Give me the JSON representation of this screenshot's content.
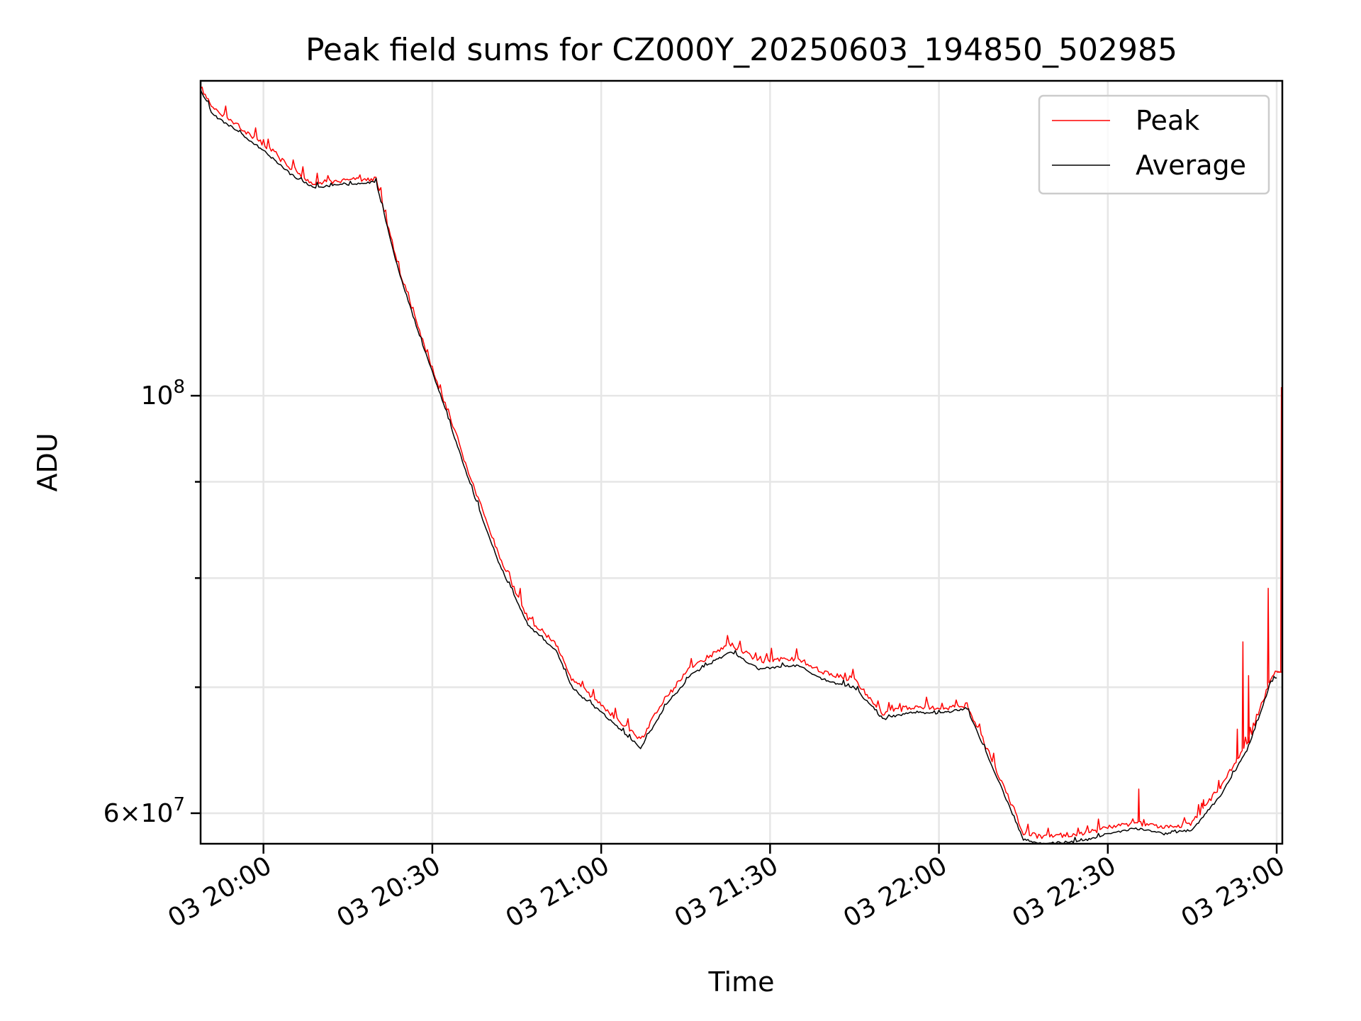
{
  "chart_data": {
    "type": "line",
    "title": "Peak field sums for CZ000Y_20250603_194850_502985",
    "xlabel": "Time",
    "ylabel": "ADU",
    "y_scale": "log",
    "xlim": [
      "2025-06-03T19:48:50",
      "2025-06-03T23:01:00"
    ],
    "ylim": [
      57800000,
      147000000
    ],
    "grid": true,
    "legend_position": "top-right",
    "x_ticks": [
      {
        "value": "2025-06-03T20:00",
        "label": "03 20:00"
      },
      {
        "value": "2025-06-03T20:30",
        "label": "03 20:30"
      },
      {
        "value": "2025-06-03T21:00",
        "label": "03 21:00"
      },
      {
        "value": "2025-06-03T21:30",
        "label": "03 21:30"
      },
      {
        "value": "2025-06-03T22:00",
        "label": "03 22:00"
      },
      {
        "value": "2025-06-03T22:30",
        "label": "03 22:30"
      },
      {
        "value": "2025-06-03T23:00",
        "label": "03 23:00"
      }
    ],
    "y_major_ticks": [
      {
        "value": 60000000,
        "mantissa": "6",
        "exponent": "7"
      },
      {
        "value": 100000000,
        "mantissa": "",
        "exponent": "8"
      }
    ],
    "y_minor_ticks": [
      70000000,
      80000000,
      90000000
    ],
    "series": [
      {
        "name": "Peak",
        "color": "#ff0000",
        "points": [
          [
            "2025-06-03T19:48:50",
            146000000
          ],
          [
            "2025-06-03T19:51",
            142000000
          ],
          [
            "2025-06-03T19:55",
            139500000
          ],
          [
            "2025-06-03T20:00",
            136000000
          ],
          [
            "2025-06-03T20:05",
            132000000
          ],
          [
            "2025-06-03T20:09",
            129500000
          ],
          [
            "2025-06-03T20:12",
            130000000
          ],
          [
            "2025-06-03T20:16",
            130200000
          ],
          [
            "2025-06-03T20:20",
            130300000
          ],
          [
            "2025-06-03T20:24",
            117000000
          ],
          [
            "2025-06-03T20:28",
            107500000
          ],
          [
            "2025-06-03T20:32",
            99500000
          ],
          [
            "2025-06-03T20:37",
            90000000
          ],
          [
            "2025-06-03T20:42",
            82000000
          ],
          [
            "2025-06-03T20:47",
            76200000
          ],
          [
            "2025-06-03T20:52",
            73800000
          ],
          [
            "2025-06-03T20:55",
            70500000
          ],
          [
            "2025-06-03T21:00",
            68500000
          ],
          [
            "2025-06-03T21:07",
            65600000
          ],
          [
            "2025-06-03T21:11",
            68800000
          ],
          [
            "2025-06-03T21:16",
            71800000
          ],
          [
            "2025-06-03T21:23",
            73800000
          ],
          [
            "2025-06-03T21:28",
            72300000
          ],
          [
            "2025-06-03T21:35",
            72500000
          ],
          [
            "2025-06-03T21:40",
            71200000
          ],
          [
            "2025-06-03T21:45",
            70600000
          ],
          [
            "2025-06-03T21:50",
            67800000
          ],
          [
            "2025-06-03T21:55",
            68300000
          ],
          [
            "2025-06-03T22:00",
            68200000
          ],
          [
            "2025-06-03T22:05",
            68500000
          ],
          [
            "2025-06-03T22:10",
            63500000
          ],
          [
            "2025-06-03T22:15",
            58600000
          ],
          [
            "2025-06-03T22:18",
            58300000
          ],
          [
            "2025-06-03T22:25",
            58500000
          ],
          [
            "2025-06-03T22:30",
            58900000
          ],
          [
            "2025-06-03T22:35",
            59300000
          ],
          [
            "2025-06-03T22:40",
            58900000
          ],
          [
            "2025-06-03T22:45",
            59300000
          ],
          [
            "2025-06-03T22:50",
            62000000
          ],
          [
            "2025-06-03T22:55",
            65500000
          ],
          [
            "2025-06-03T22:59",
            70800000
          ],
          [
            "2025-06-03T23:00",
            71300000
          ]
        ]
      },
      {
        "name": "Average",
        "color": "#000000",
        "points": [
          [
            "2025-06-03T19:48:50",
            145500000
          ],
          [
            "2025-06-03T19:51",
            141000000
          ],
          [
            "2025-06-03T19:55",
            138500000
          ],
          [
            "2025-06-03T20:00",
            135000000
          ],
          [
            "2025-06-03T20:05",
            131000000
          ],
          [
            "2025-06-03T20:09",
            129000000
          ],
          [
            "2025-06-03T20:12",
            129300000
          ],
          [
            "2025-06-03T20:16",
            129600000
          ],
          [
            "2025-06-03T20:20",
            129900000
          ],
          [
            "2025-06-03T20:24",
            116500000
          ],
          [
            "2025-06-03T20:28",
            107000000
          ],
          [
            "2025-06-03T20:32",
            99000000
          ],
          [
            "2025-06-03T20:37",
            89200000
          ],
          [
            "2025-06-03T20:42",
            81200000
          ],
          [
            "2025-06-03T20:47",
            75500000
          ],
          [
            "2025-06-03T20:52",
            73200000
          ],
          [
            "2025-06-03T20:55",
            69800000
          ],
          [
            "2025-06-03T21:00",
            67900000
          ],
          [
            "2025-06-03T21:07",
            65000000
          ],
          [
            "2025-06-03T21:11",
            68100000
          ],
          [
            "2025-06-03T21:16",
            71100000
          ],
          [
            "2025-06-03T21:23",
            73100000
          ],
          [
            "2025-06-03T21:28",
            71600000
          ],
          [
            "2025-06-03T21:35",
            71900000
          ],
          [
            "2025-06-03T21:40",
            70500000
          ],
          [
            "2025-06-03T21:45",
            70000000
          ],
          [
            "2025-06-03T21:50",
            67300000
          ],
          [
            "2025-06-03T21:55",
            67900000
          ],
          [
            "2025-06-03T22:00",
            67800000
          ],
          [
            "2025-06-03T22:05",
            68200000
          ],
          [
            "2025-06-03T22:10",
            63000000
          ],
          [
            "2025-06-03T22:15",
            58100000
          ],
          [
            "2025-06-03T22:18",
            57850000
          ],
          [
            "2025-06-03T22:25",
            57950000
          ],
          [
            "2025-06-03T22:30",
            58500000
          ],
          [
            "2025-06-03T22:35",
            58900000
          ],
          [
            "2025-06-03T22:40",
            58500000
          ],
          [
            "2025-06-03T22:45",
            58800000
          ],
          [
            "2025-06-03T22:50",
            61300000
          ],
          [
            "2025-06-03T22:55",
            65000000
          ],
          [
            "2025-06-03T22:59",
            70500000
          ],
          [
            "2025-06-03T23:00",
            70800000
          ]
        ]
      }
    ],
    "peak_spikes": [
      [
        "2025-06-03T22:35:30",
        61800000
      ],
      [
        "2025-06-03T22:47",
        61000000
      ],
      [
        "2025-06-03T22:50",
        62000000
      ],
      [
        "2025-06-03T22:53",
        66500000
      ],
      [
        "2025-06-03T22:54",
        74000000
      ],
      [
        "2025-06-03T22:55",
        71000000
      ],
      [
        "2025-06-03T22:58:30",
        79000000
      ],
      [
        "2025-06-03T23:00:50",
        101000000
      ]
    ]
  }
}
